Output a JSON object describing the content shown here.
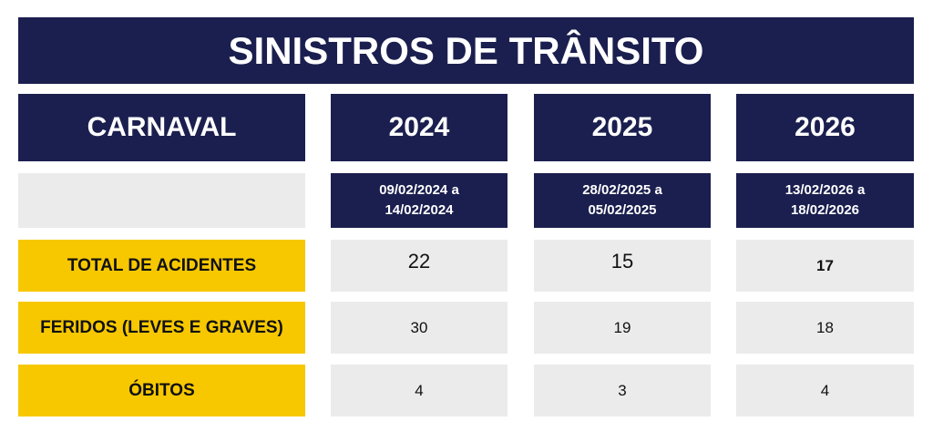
{
  "header": {
    "title": "SINISTROS DE TRÂNSITO"
  },
  "table": {
    "columns": [
      "CARNAVAL",
      "2024",
      "2025",
      "2026"
    ],
    "periods": [
      "09/02/2024 a 14/02/2024",
      "28/02/2025 a 05/02/2025",
      "13/02/2026 a 18/02/2026"
    ],
    "rows": [
      {
        "label": "TOTAL DE ACIDENTES",
        "values": [
          22,
          15,
          17
        ]
      },
      {
        "label": "FERIDOS (LEVES E GRAVES)",
        "values": [
          30,
          19,
          18
        ]
      },
      {
        "label": "ÓBITOS",
        "values": [
          4,
          3,
          4
        ]
      }
    ]
  }
}
